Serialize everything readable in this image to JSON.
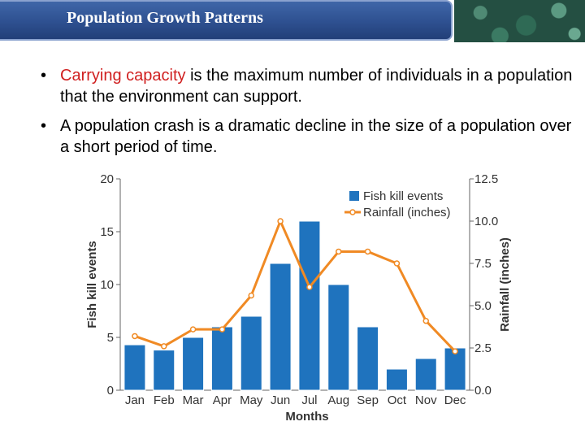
{
  "header": {
    "title": "Population Growth Patterns"
  },
  "bullets": [
    {
      "highlight": "Carrying capacity",
      "text": " is the maximum number of individuals in a population that the environment can support."
    },
    {
      "highlight": "",
      "text": "A population crash is a dramatic decline in the size of a population over a short period of time."
    }
  ],
  "bullet_glyph": "•",
  "colors": {
    "bar": "#1f73be",
    "line": "#f08a24",
    "title_bar": "#2e5090",
    "highlight": "#d02020"
  },
  "chart_data": {
    "type": "bar+line",
    "categories": [
      "Jan",
      "Feb",
      "Mar",
      "Apr",
      "May",
      "Jun",
      "Jul",
      "Aug",
      "Sep",
      "Oct",
      "Nov",
      "Dec"
    ],
    "series": [
      {
        "name": "Fish kill events",
        "type": "bar",
        "axis": "left",
        "values": [
          4.3,
          3.8,
          5,
          6,
          7,
          12,
          16,
          10,
          6,
          2,
          3,
          4
        ]
      },
      {
        "name": "Rainfall (inches)",
        "type": "line",
        "axis": "right",
        "values": [
          3.2,
          2.6,
          3.6,
          3.6,
          5.6,
          10.0,
          6.1,
          8.2,
          8.2,
          7.5,
          4.1,
          2.3
        ]
      }
    ],
    "xlabel": "Months",
    "ylabel": "Fish kill events",
    "y2label": "Rainfall (inches)",
    "ylim": [
      0,
      20
    ],
    "y2lim": [
      0,
      12.5
    ],
    "yticks": [
      "0",
      "5",
      "10",
      "15",
      "20"
    ],
    "y2ticks": [
      "0.0",
      "2.5",
      "5.0",
      "7.5",
      "10.0",
      "12.5"
    ],
    "legend": [
      "Fish kill events",
      "Rainfall (inches)"
    ]
  }
}
